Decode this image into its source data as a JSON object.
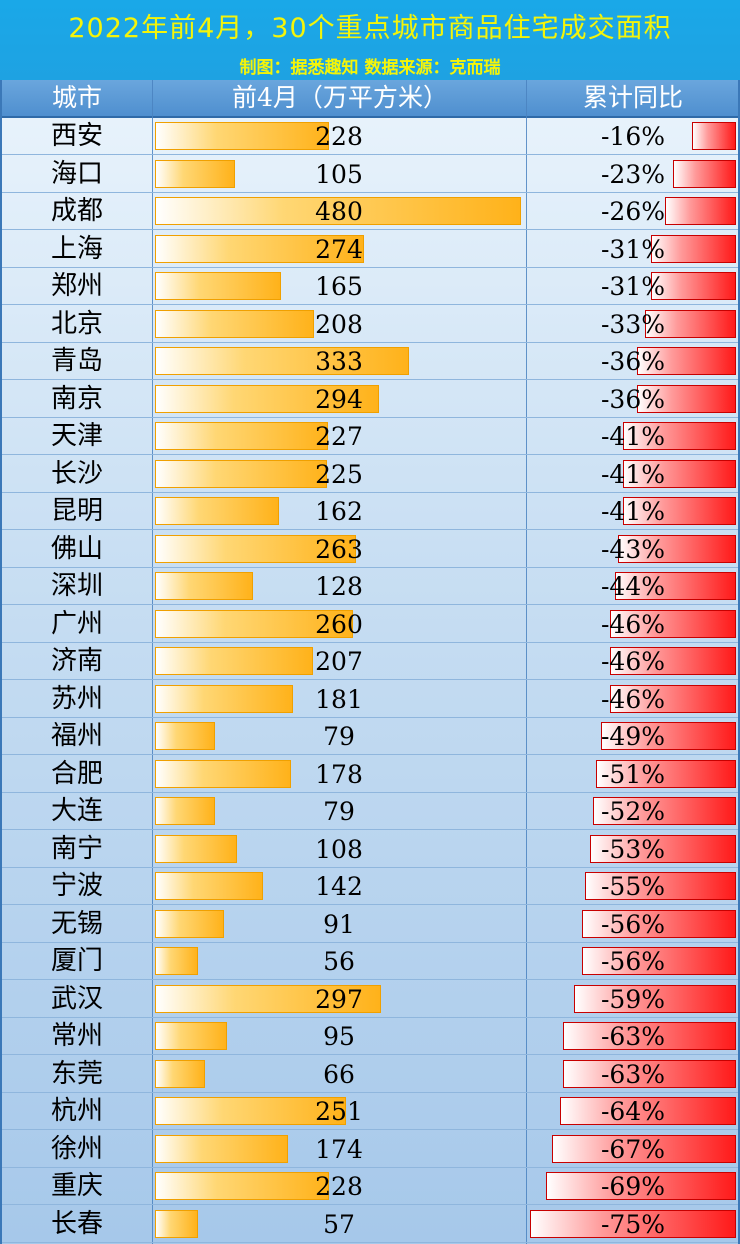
{
  "header": {
    "title": "2022年前4月，30个重点城市商品住宅成交面积",
    "subtitle": "制图：据悉趣知  数据来源：克而瑞"
  },
  "chart_data": {
    "type": "table",
    "columns": [
      "城市",
      "前4月（万平方米）",
      "累计同比"
    ],
    "rows": [
      {
        "city": "西安",
        "area": 228,
        "yoy": -16,
        "yoy_label": "-16%"
      },
      {
        "city": "海口",
        "area": 105,
        "yoy": -23,
        "yoy_label": "-23%"
      },
      {
        "city": "成都",
        "area": 480,
        "yoy": -26,
        "yoy_label": "-26%"
      },
      {
        "city": "上海",
        "area": 274,
        "yoy": -31,
        "yoy_label": "-31%"
      },
      {
        "city": "郑州",
        "area": 165,
        "yoy": -31,
        "yoy_label": "-31%"
      },
      {
        "city": "北京",
        "area": 208,
        "yoy": -33,
        "yoy_label": "-33%"
      },
      {
        "city": "青岛",
        "area": 333,
        "yoy": -36,
        "yoy_label": "-36%"
      },
      {
        "city": "南京",
        "area": 294,
        "yoy": -36,
        "yoy_label": "-36%"
      },
      {
        "city": "天津",
        "area": 227,
        "yoy": -41,
        "yoy_label": "-41%"
      },
      {
        "city": "长沙",
        "area": 225,
        "yoy": -41,
        "yoy_label": "-41%"
      },
      {
        "city": "昆明",
        "area": 162,
        "yoy": -41,
        "yoy_label": "-41%"
      },
      {
        "city": "佛山",
        "area": 263,
        "yoy": -43,
        "yoy_label": "-43%"
      },
      {
        "city": "深圳",
        "area": 128,
        "yoy": -44,
        "yoy_label": "-44%"
      },
      {
        "city": "广州",
        "area": 260,
        "yoy": -46,
        "yoy_label": "-46%"
      },
      {
        "city": "济南",
        "area": 207,
        "yoy": -46,
        "yoy_label": "-46%"
      },
      {
        "city": "苏州",
        "area": 181,
        "yoy": -46,
        "yoy_label": "-46%"
      },
      {
        "city": "福州",
        "area": 79,
        "yoy": -49,
        "yoy_label": "-49%"
      },
      {
        "city": "合肥",
        "area": 178,
        "yoy": -51,
        "yoy_label": "-51%"
      },
      {
        "city": "大连",
        "area": 79,
        "yoy": -52,
        "yoy_label": "-52%"
      },
      {
        "city": "南宁",
        "area": 108,
        "yoy": -53,
        "yoy_label": "-53%"
      },
      {
        "city": "宁波",
        "area": 142,
        "yoy": -55,
        "yoy_label": "-55%"
      },
      {
        "city": "无锡",
        "area": 91,
        "yoy": -56,
        "yoy_label": "-56%"
      },
      {
        "city": "厦门",
        "area": 56,
        "yoy": -56,
        "yoy_label": "-56%"
      },
      {
        "city": "武汉",
        "area": 297,
        "yoy": -59,
        "yoy_label": "-59%"
      },
      {
        "city": "常州",
        "area": 95,
        "yoy": -63,
        "yoy_label": "-63%"
      },
      {
        "city": "东莞",
        "area": 66,
        "yoy": -63,
        "yoy_label": "-63%"
      },
      {
        "city": "杭州",
        "area": 251,
        "yoy": -64,
        "yoy_label": "-64%"
      },
      {
        "city": "徐州",
        "area": 174,
        "yoy": -67,
        "yoy_label": "-67%"
      },
      {
        "city": "重庆",
        "area": 228,
        "yoy": -69,
        "yoy_label": "-69%"
      },
      {
        "city": "长春",
        "area": 57,
        "yoy": -75,
        "yoy_label": "-75%"
      }
    ],
    "area_max": 480,
    "yoy_max_abs": 75,
    "colors": {
      "area_bar": "#ffb21a",
      "yoy_bar": "#ff1a1a",
      "title_text": "#f4f40a",
      "title_bg": "#1ea2e2",
      "header_bg": "#5b98d6"
    }
  }
}
